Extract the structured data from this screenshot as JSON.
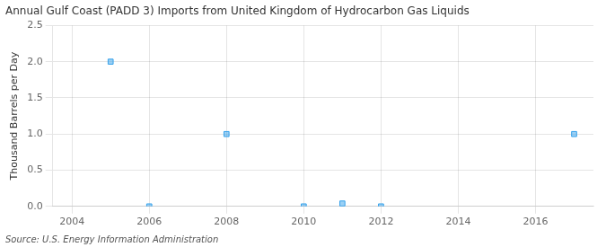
{
  "chart_data": {
    "type": "scatter",
    "title": "Annual Gulf Coast (PADD 3) Imports from United Kingdom of Hydrocarbon Gas Liquids",
    "ylabel": "Thousand Barrels per Day",
    "source": "Source: U.S. Energy Information Administration",
    "x": [
      2005,
      2006,
      2008,
      2010,
      2011,
      2012,
      2017
    ],
    "values": [
      2.0,
      0.0,
      1.0,
      0.0,
      0.04,
      0.0,
      1.0
    ],
    "marker": "square",
    "xlim": [
      2003.5,
      2017.5
    ],
    "ylim": [
      0.0,
      2.5
    ],
    "xticks": [
      2004,
      2006,
      2008,
      2010,
      2012,
      2014,
      2016
    ],
    "yticks": [
      {
        "value": 0.0,
        "label": "0.0"
      },
      0.5,
      {
        "value": 1.0,
        "label": "1.0"
      },
      1.5,
      {
        "value": 2.0,
        "label": "2.0"
      },
      2.5
    ],
    "grid": true
  }
}
